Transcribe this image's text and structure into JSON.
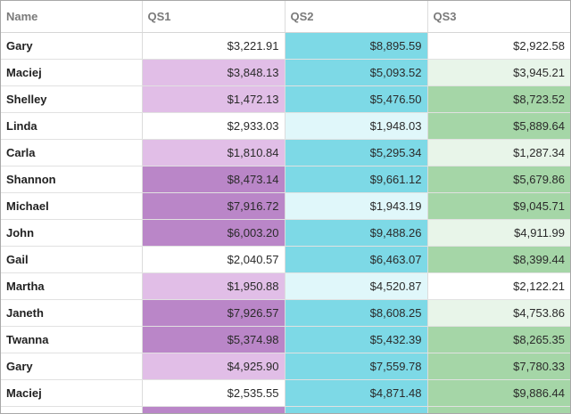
{
  "columns": [
    "Name",
    "QS1",
    "QS2",
    "QS3"
  ],
  "colors": {
    "qs1": {
      "low": "#ffffff",
      "mid": "#e1bee7",
      "high": "#ba86c8"
    },
    "qs2": {
      "low": "#e0f7fa",
      "high": "#7dd9e6"
    },
    "qs3": {
      "low": "#ffffff",
      "mid": "#e8f5e9",
      "high": "#a5d6a7"
    }
  },
  "rows": [
    {
      "name": "Gary",
      "qs1": "$3,221.91",
      "qs2": "$8,895.59",
      "qs3": "$2,922.58",
      "s1": "low",
      "s2": "high",
      "s3": "low"
    },
    {
      "name": "Maciej",
      "qs1": "$3,848.13",
      "qs2": "$5,093.52",
      "qs3": "$3,945.21",
      "s1": "mid",
      "s2": "high",
      "s3": "mid"
    },
    {
      "name": "Shelley",
      "qs1": "$1,472.13",
      "qs2": "$5,476.50",
      "qs3": "$8,723.52",
      "s1": "mid",
      "s2": "high",
      "s3": "high"
    },
    {
      "name": "Linda",
      "qs1": "$2,933.03",
      "qs2": "$1,948.03",
      "qs3": "$5,889.64",
      "s1": "low",
      "s2": "low",
      "s3": "high"
    },
    {
      "name": "Carla",
      "qs1": "$1,810.84",
      "qs2": "$5,295.34",
      "qs3": "$1,287.34",
      "s1": "mid",
      "s2": "high",
      "s3": "mid"
    },
    {
      "name": "Shannon",
      "qs1": "$8,473.14",
      "qs2": "$9,661.12",
      "qs3": "$5,679.86",
      "s1": "high",
      "s2": "high",
      "s3": "high"
    },
    {
      "name": "Michael",
      "qs1": "$7,916.72",
      "qs2": "$1,943.19",
      "qs3": "$9,045.71",
      "s1": "high",
      "s2": "low",
      "s3": "high"
    },
    {
      "name": "John",
      "qs1": "$6,003.20",
      "qs2": "$9,488.26",
      "qs3": "$4,911.99",
      "s1": "high",
      "s2": "high",
      "s3": "mid"
    },
    {
      "name": "Gail",
      "qs1": "$2,040.57",
      "qs2": "$6,463.07",
      "qs3": "$8,399.44",
      "s1": "low",
      "s2": "high",
      "s3": "high"
    },
    {
      "name": "Martha",
      "qs1": "$1,950.88",
      "qs2": "$4,520.87",
      "qs3": "$2,122.21",
      "s1": "mid",
      "s2": "low",
      "s3": "low"
    },
    {
      "name": "Janeth",
      "qs1": "$7,926.57",
      "qs2": "$8,608.25",
      "qs3": "$4,753.86",
      "s1": "high",
      "s2": "high",
      "s3": "mid"
    },
    {
      "name": "Twanna",
      "qs1": "$5,374.98",
      "qs2": "$5,432.39",
      "qs3": "$8,265.35",
      "s1": "high",
      "s2": "high",
      "s3": "high"
    },
    {
      "name": "Gary",
      "qs1": "$4,925.90",
      "qs2": "$7,559.78",
      "qs3": "$7,780.33",
      "s1": "mid",
      "s2": "high",
      "s3": "high"
    },
    {
      "name": "Maciej",
      "qs1": "$2,535.55",
      "qs2": "$4,871.48",
      "qs3": "$9,886.44",
      "s1": "low",
      "s2": "high",
      "s3": "high"
    },
    {
      "name": "",
      "qs1": "",
      "qs2": "",
      "qs3": "",
      "s1": "high",
      "s2": "high",
      "s3": "high"
    }
  ]
}
